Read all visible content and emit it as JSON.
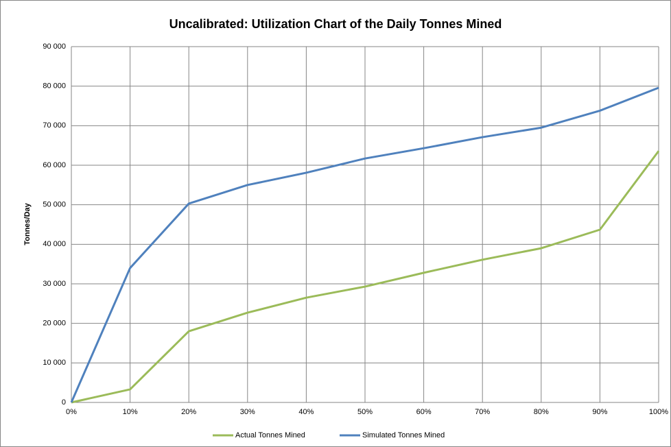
{
  "chart_data": {
    "type": "line",
    "title": "Uncalibrated:  Utilization Chart of the Daily Tonnes Mined",
    "y_label": "Tonnes/Day",
    "categories": [
      "0%",
      "10%",
      "20%",
      "30%",
      "40%",
      "50%",
      "60%",
      "70%",
      "80%",
      "90%",
      "100%"
    ],
    "series": [
      {
        "name": "Actual Tonnes Mined",
        "color": "#9bbb59",
        "values": [
          0,
          3300,
          18000,
          22700,
          26500,
          29300,
          32800,
          36100,
          39000,
          43700,
          63600
        ]
      },
      {
        "name": "Simulated Tonnes Mined",
        "color": "#4f81bd",
        "values": [
          0,
          34000,
          50300,
          55000,
          58100,
          61700,
          64300,
          67100,
          69500,
          73800,
          79600
        ]
      }
    ],
    "ylim": [
      0,
      90000
    ],
    "yticks": [
      0,
      {
        "value": 10000,
        "label": "10 000"
      },
      {
        "value": 20000,
        "label": "20 000"
      },
      {
        "value": 30000,
        "label": "30 000"
      },
      {
        "value": 40000,
        "label": "40 000"
      },
      {
        "value": 50000,
        "label": "50 000"
      },
      {
        "value": 60000,
        "label": "60 000"
      },
      {
        "value": 70000,
        "label": "70 000"
      },
      {
        "value": 80000,
        "label": "80 000"
      },
      {
        "value": 90000,
        "label": "90 000"
      }
    ],
    "grid": true,
    "legend": "bottom"
  }
}
